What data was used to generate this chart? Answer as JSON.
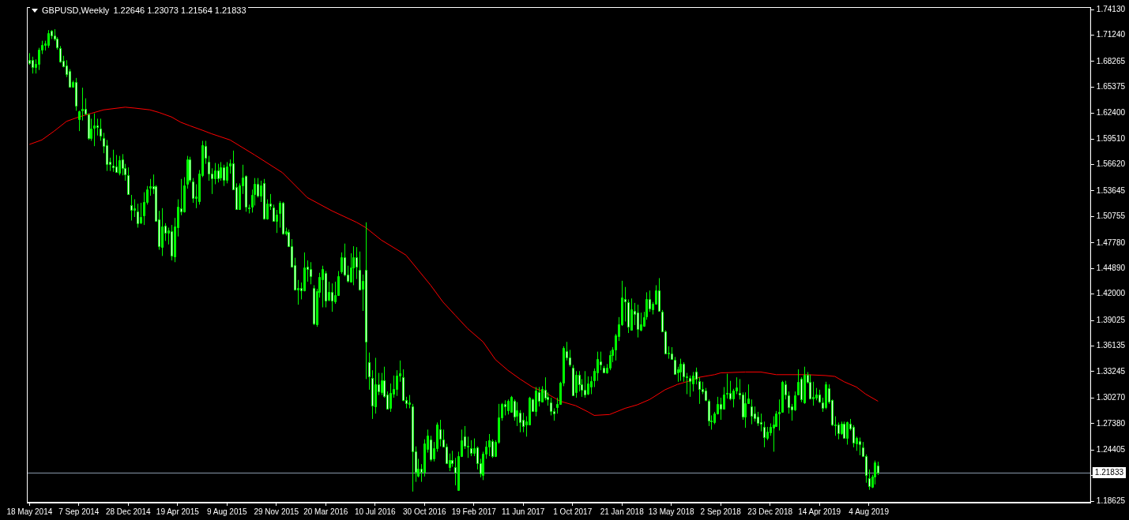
{
  "chart_data": {
    "type": "candlestick",
    "title": "GBPUSD,Weekly",
    "subtitle": "1.22646 1.23073 1.21564 1.21833",
    "color": "#00ff00",
    "colors": [
      "#ffffff",
      "#ffffff",
      "#00ff00",
      "#00ff00",
      "#00ff00",
      "#00ff00",
      "#00ff00",
      "#ffffff",
      "#ffffff",
      "#ffffff",
      "#ffffff",
      "#ffffff",
      "#ffffff",
      "#ffffff",
      "#00ff00",
      "#ffffff",
      "#00ff00",
      "#00ff00",
      "#ffffff",
      "#ffffff",
      "#00ff00",
      "#00ff00",
      "#ffffff",
      "#ffffff",
      "#ffffff",
      "#ffffff",
      "#ffffff",
      "#ffffff",
      "#ffffff",
      "#00ff00",
      "#ffffff",
      "#ffffff",
      "#ffffff",
      "#ffffff",
      "#00ff00",
      "#ffffff",
      "#00ff00",
      "#00ff00",
      "#00ff00",
      "#00ff00",
      "#ffffff",
      "#ffffff",
      "#ffffff",
      "#00ff00",
      "#ffffff",
      "#00ff00",
      "#ffffff",
      "#00ff00",
      "#00ff00",
      "#ffffff",
      "#00ff00",
      "#00ff00",
      "#ffffff",
      "#ffffff",
      "#00ff00",
      "#00ff00",
      "#00ff00",
      "#ffffff",
      "#ffffff",
      "#ffffff",
      "#00ff00",
      "#ffffff",
      "#00ff00",
      "#ffffff",
      "#00ff00",
      "#00ff00",
      "#ffffff",
      "#ffffff",
      "#00ff00",
      "#00ff00",
      "#ffffff",
      "#ffffff",
      "#00ff00",
      "#00ff00",
      "#ffffff",
      "#00ff00",
      "#ffffff",
      "#00ff00",
      "#ffffff",
      "#ffffff",
      "#00ff00",
      "#00ff00",
      "#ffffff",
      "#00ff00",
      "#ffffff",
      "#ffffff",
      "#ffffff",
      "#00ff00",
      "#ffffff",
      "#00ff00",
      "#ffffff",
      "#ffffff",
      "#ffffff",
      "#00ff00",
      "#00ff00",
      "#00ff00",
      "#ffffff",
      "#00ff00",
      "#ffffff",
      "#00ff00",
      "#00ff00",
      "#00ff00",
      "#ffffff",
      "#ffffff",
      "#00ff00",
      "#00ff00",
      "#ffffff",
      "#ffffff",
      "#00ff00",
      "#ffffff",
      "#ffffff",
      "#ffffff",
      "#00ff00",
      "#ffffff",
      "#00ff00",
      "#ffffff",
      "#ffffff",
      "#00ff00",
      "#00ff00",
      "#00ff00",
      "#00ff00",
      "#ffffff",
      "#ffffff",
      "#00ff00",
      "#ffffff",
      "#ffffff",
      "#00ff00",
      "#ffffff",
      "#00ff00",
      "#00ff00",
      "#ffffff",
      "#00ff00",
      "#00ff00",
      "#ffffff",
      "#ffffff",
      "#ffffff",
      "#00ff00",
      "#ffffff",
      "#ffffff",
      "#00ff00",
      "#00ff00",
      "#ffffff",
      "#00ff00",
      "#ffffff",
      "#00ff00",
      "#ffffff",
      "#ffffff",
      "#00ff00",
      "#00ff00",
      "#00ff00",
      "#ffffff",
      "#00ff00",
      "#00ff00",
      "#00ff00",
      "#ffffff",
      "#00ff00",
      "#00ff00",
      "#ffffff",
      "#00ff00",
      "#ffffff",
      "#ffffff",
      "#00ff00",
      "#00ff00",
      "#ffffff",
      "#00ff00",
      "#ffffff",
      "#00ff00",
      "#ffffff",
      "#ffffff",
      "#ffffff",
      "#ffffff",
      "#00ff00",
      "#00ff00",
      "#00ff00",
      "#ffffff",
      "#ffffff",
      "#ffffff",
      "#00ff00",
      "#ffffff",
      "#ffffff",
      "#ffffff",
      "#00ff00",
      "#00ff00",
      "#00ff00",
      "#00ff00",
      "#ffffff",
      "#ffffff",
      "#00ff00",
      "#00ff00",
      "#00ff00",
      "#00ff00",
      "#00ff00",
      "#00ff00",
      "#ffffff",
      "#ffffff",
      "#00ff00",
      "#ffffff",
      "#ffffff",
      "#00ff00",
      "#00ff00",
      "#00ff00",
      "#ffffff",
      "#00ff00",
      "#00ff00",
      "#ffffff",
      "#ffffff",
      "#ffffff",
      "#00ff00",
      "#ffffff",
      "#ffffff",
      "#00ff00",
      "#00ff00",
      "#ffffff",
      "#ffffff",
      "#ffffff",
      "#00ff00",
      "#ffffff",
      "#ffffff",
      "#ffffff",
      "#ffffff",
      "#ffffff",
      "#ffffff",
      "#00ff00",
      "#00ff00",
      "#ffffff",
      "#00ff00",
      "#00ff00",
      "#ffffff",
      "#00ff00",
      "#00ff00",
      "#ffffff",
      "#ffffff",
      "#00ff00",
      "#00ff00",
      "#ffffff",
      "#ffffff",
      "#ffffff",
      "#ffffff",
      "#ffffff",
      "#00ff00",
      "#00ff00",
      "#00ff00",
      "#00ff00",
      "#00ff00",
      "#00ff00",
      "#ffffff",
      "#ffffff",
      "#ffffff",
      "#00ff00",
      "#00ff00",
      "#ffffff",
      "#00ff00",
      "#ffffff",
      "#ffffff",
      "#00ff00",
      "#00ff00",
      "#ffffff",
      "#ffffff",
      "#00ff00",
      "#ffffff",
      "#ffffff",
      "#00ff00",
      "#ffffff",
      "#00ff00",
      "#ffffff",
      "#00ff00",
      "#ffffff",
      "#ffffff",
      "#00ff00",
      "#ffffff",
      "#ffffff",
      "#ffffff",
      "#ffffff",
      "#00ff00",
      "#00ff00",
      "#ffffff"
    ],
    "x": [
      "2014-05-18",
      "2014-05-25",
      "2014-06-01",
      "2014-06-08",
      "2014-06-15",
      "2014-06-22",
      "2014-06-29",
      "2014-07-06",
      "2014-07-13",
      "2014-07-20",
      "2014-07-27",
      "2014-08-03",
      "2014-08-10",
      "2014-08-17",
      "2014-08-24",
      "2014-08-31",
      "2014-09-07",
      "2014-09-14",
      "2014-09-21",
      "2014-09-28",
      "2014-10-05",
      "2014-10-12",
      "2014-10-19",
      "2014-10-26",
      "2014-11-02",
      "2014-11-09",
      "2014-11-16",
      "2014-11-23",
      "2014-11-30",
      "2014-12-07",
      "2014-12-14",
      "2014-12-21",
      "2014-12-28",
      "2015-01-04",
      "2015-01-11",
      "2015-01-18",
      "2015-01-25",
      "2015-02-01",
      "2015-02-08",
      "2015-02-15",
      "2015-02-22",
      "2015-03-01",
      "2015-03-08",
      "2015-03-15",
      "2015-03-22",
      "2015-03-29",
      "2015-04-05",
      "2015-04-12",
      "2015-04-19",
      "2015-04-26",
      "2015-05-03",
      "2015-05-10",
      "2015-05-17",
      "2015-05-24",
      "2015-05-31",
      "2015-06-07",
      "2015-06-14",
      "2015-06-21",
      "2015-06-28",
      "2015-07-05",
      "2015-07-12",
      "2015-07-19",
      "2015-07-26",
      "2015-08-02",
      "2015-08-09",
      "2015-08-16",
      "2015-08-23",
      "2015-08-30",
      "2015-09-06",
      "2015-09-13",
      "2015-09-20",
      "2015-09-27",
      "2015-10-04",
      "2015-10-11",
      "2015-10-18",
      "2015-10-25",
      "2015-11-01",
      "2015-11-08",
      "2015-11-15",
      "2015-11-22",
      "2015-11-29",
      "2015-12-06",
      "2015-12-13",
      "2015-12-20",
      "2015-12-27",
      "2016-01-03",
      "2016-01-10",
      "2016-01-17",
      "2016-01-24",
      "2016-01-31",
      "2016-02-07",
      "2016-02-14",
      "2016-02-21",
      "2016-02-28",
      "2016-03-06",
      "2016-03-13",
      "2016-03-20",
      "2016-03-27",
      "2016-04-03",
      "2016-04-10",
      "2016-04-17",
      "2016-04-24",
      "2016-05-01",
      "2016-05-08",
      "2016-05-15",
      "2016-05-22",
      "2016-05-29",
      "2016-06-05",
      "2016-06-12",
      "2016-06-19",
      "2016-06-26",
      "2016-07-03",
      "2016-07-10",
      "2016-07-17",
      "2016-07-24",
      "2016-07-31",
      "2016-08-07",
      "2016-08-14",
      "2016-08-21",
      "2016-08-28",
      "2016-09-04",
      "2016-09-11",
      "2016-09-18",
      "2016-09-25",
      "2016-10-02",
      "2016-10-09",
      "2016-10-16",
      "2016-10-23",
      "2016-10-30",
      "2016-11-06",
      "2016-11-13",
      "2016-11-20",
      "2016-11-27",
      "2016-12-04",
      "2016-12-11",
      "2016-12-18",
      "2016-12-25",
      "2017-01-01",
      "2017-01-08",
      "2017-01-15",
      "2017-01-22",
      "2017-01-29",
      "2017-02-05",
      "2017-02-12",
      "2017-02-19",
      "2017-02-26",
      "2017-03-05",
      "2017-03-12",
      "2017-03-19",
      "2017-03-26",
      "2017-04-02",
      "2017-04-09",
      "2017-04-16",
      "2017-04-23",
      "2017-04-30",
      "2017-05-07",
      "2017-05-14",
      "2017-05-21",
      "2017-05-28",
      "2017-06-04",
      "2017-06-11",
      "2017-06-18",
      "2017-06-25",
      "2017-07-02",
      "2017-07-09",
      "2017-07-16",
      "2017-07-23",
      "2017-07-30",
      "2017-08-06",
      "2017-08-13",
      "2017-08-20",
      "2017-08-27",
      "2017-09-03",
      "2017-09-10",
      "2017-09-17",
      "2017-09-24",
      "2017-10-01",
      "2017-10-08",
      "2017-10-15",
      "2017-10-22",
      "2017-10-29",
      "2017-11-05",
      "2017-11-12",
      "2017-11-19",
      "2017-11-26",
      "2017-12-03",
      "2017-12-10",
      "2017-12-17",
      "2017-12-24",
      "2017-12-31",
      "2018-01-07",
      "2018-01-14",
      "2018-01-21",
      "2018-01-28",
      "2018-02-04",
      "2018-02-11",
      "2018-02-18",
      "2018-02-25",
      "2018-03-04",
      "2018-03-11",
      "2018-03-18",
      "2018-03-25",
      "2018-04-01",
      "2018-04-08",
      "2018-04-15",
      "2018-04-22",
      "2018-04-29",
      "2018-05-06",
      "2018-05-13",
      "2018-05-20",
      "2018-05-27",
      "2018-06-03",
      "2018-06-10",
      "2018-06-17",
      "2018-06-24",
      "2018-07-01",
      "2018-07-08",
      "2018-07-15",
      "2018-07-22",
      "2018-07-29",
      "2018-08-05",
      "2018-08-12",
      "2018-08-19",
      "2018-08-26",
      "2018-09-02",
      "2018-09-09",
      "2018-09-16",
      "2018-09-23",
      "2018-09-30",
      "2018-10-07",
      "2018-10-14",
      "2018-10-21",
      "2018-10-28",
      "2018-11-04",
      "2018-11-11",
      "2018-11-18",
      "2018-11-25",
      "2018-12-02",
      "2018-12-09",
      "2018-12-16",
      "2018-12-23",
      "2018-12-30",
      "2019-01-06",
      "2019-01-13",
      "2019-01-20",
      "2019-01-27",
      "2019-02-03",
      "2019-02-10",
      "2019-02-17",
      "2019-02-24",
      "2019-03-03",
      "2019-03-10",
      "2019-03-17",
      "2019-03-24",
      "2019-03-31",
      "2019-04-07",
      "2019-04-14",
      "2019-04-21",
      "2019-04-28",
      "2019-05-05",
      "2019-05-12",
      "2019-05-19",
      "2019-05-26",
      "2019-06-02",
      "2019-06-09",
      "2019-06-16",
      "2019-06-23",
      "2019-06-30",
      "2019-07-07",
      "2019-07-14",
      "2019-07-21",
      "2019-07-28",
      "2019-08-04",
      "2019-08-11",
      "2019-08-18",
      "2019-08-25"
    ],
    "ohlc": [
      [
        1.684,
        1.692,
        1.679,
        1.68
      ],
      [
        1.684,
        1.688,
        1.669,
        1.676
      ],
      [
        1.676,
        1.685,
        1.669,
        1.68
      ],
      [
        1.68,
        1.698,
        1.673,
        1.696
      ],
      [
        1.696,
        1.706,
        1.691,
        1.701
      ],
      [
        1.701,
        1.706,
        1.695,
        1.703
      ],
      [
        1.702,
        1.718,
        1.698,
        1.715
      ],
      [
        1.717,
        1.718,
        1.708,
        1.712
      ],
      [
        1.712,
        1.719,
        1.706,
        1.708
      ],
      [
        1.708,
        1.71,
        1.696,
        1.698
      ],
      [
        1.698,
        1.7,
        1.681,
        1.683
      ],
      [
        1.683,
        1.689,
        1.676,
        1.677
      ],
      [
        1.678,
        1.684,
        1.665,
        1.668
      ],
      [
        1.672,
        1.674,
        1.653,
        1.654
      ],
      [
        1.654,
        1.661,
        1.653,
        1.659
      ],
      [
        1.659,
        1.664,
        1.627,
        1.632
      ],
      [
        1.617,
        1.627,
        1.604,
        1.626
      ],
      [
        1.627,
        1.653,
        1.616,
        1.629
      ],
      [
        1.629,
        1.641,
        1.622,
        1.624
      ],
      [
        1.623,
        1.624,
        1.594,
        1.596
      ],
      [
        1.596,
        1.618,
        1.593,
        1.607
      ],
      [
        1.607,
        1.624,
        1.587,
        1.61
      ],
      [
        1.61,
        1.618,
        1.599,
        1.608
      ],
      [
        1.607,
        1.618,
        1.593,
        1.599
      ],
      [
        1.596,
        1.602,
        1.579,
        1.587
      ],
      [
        1.588,
        1.594,
        1.559,
        1.567
      ],
      [
        1.569,
        1.574,
        1.559,
        1.566
      ],
      [
        1.565,
        1.583,
        1.558,
        1.563
      ],
      [
        1.564,
        1.577,
        1.557,
        1.558
      ],
      [
        1.557,
        1.576,
        1.554,
        1.571
      ],
      [
        1.572,
        1.578,
        1.554,
        1.562
      ],
      [
        1.562,
        1.567,
        1.548,
        1.555
      ],
      [
        1.554,
        1.563,
        1.532,
        1.533
      ],
      [
        1.52,
        1.532,
        1.503,
        1.515
      ],
      [
        1.515,
        1.527,
        1.507,
        1.517
      ],
      [
        1.513,
        1.522,
        1.495,
        1.5
      ],
      [
        1.501,
        1.523,
        1.499,
        1.507
      ],
      [
        1.509,
        1.535,
        1.498,
        1.524
      ],
      [
        1.524,
        1.542,
        1.521,
        1.538
      ],
      [
        1.54,
        1.55,
        1.531,
        1.542
      ],
      [
        1.542,
        1.555,
        1.533,
        1.539
      ],
      [
        1.542,
        1.543,
        1.502,
        1.503
      ],
      [
        1.504,
        1.514,
        1.47,
        1.474
      ],
      [
        1.473,
        1.517,
        1.463,
        1.496
      ],
      [
        1.497,
        1.5,
        1.48,
        1.489
      ],
      [
        1.489,
        1.495,
        1.476,
        1.492
      ],
      [
        1.491,
        1.498,
        1.458,
        1.463
      ],
      [
        1.462,
        1.506,
        1.456,
        1.496
      ],
      [
        1.496,
        1.527,
        1.485,
        1.519
      ],
      [
        1.517,
        1.55,
        1.509,
        1.513
      ],
      [
        1.514,
        1.552,
        1.512,
        1.543
      ],
      [
        1.544,
        1.576,
        1.539,
        1.572
      ],
      [
        1.572,
        1.575,
        1.546,
        1.549
      ],
      [
        1.547,
        1.551,
        1.523,
        1.528
      ],
      [
        1.528,
        1.544,
        1.517,
        1.53
      ],
      [
        1.525,
        1.56,
        1.521,
        1.556
      ],
      [
        1.554,
        1.593,
        1.552,
        1.588
      ],
      [
        1.587,
        1.593,
        1.567,
        1.574
      ],
      [
        1.569,
        1.576,
        1.548,
        1.556
      ],
      [
        1.556,
        1.562,
        1.533,
        1.551
      ],
      [
        1.551,
        1.568,
        1.544,
        1.56
      ],
      [
        1.56,
        1.567,
        1.546,
        1.551
      ],
      [
        1.551,
        1.569,
        1.548,
        1.563
      ],
      [
        1.563,
        1.566,
        1.542,
        1.549
      ],
      [
        1.549,
        1.569,
        1.545,
        1.564
      ],
      [
        1.565,
        1.572,
        1.556,
        1.568
      ],
      [
        1.568,
        1.582,
        1.538,
        1.539
      ],
      [
        1.541,
        1.545,
        1.515,
        1.516
      ],
      [
        1.516,
        1.545,
        1.515,
        1.543
      ],
      [
        1.543,
        1.566,
        1.533,
        1.552
      ],
      [
        1.553,
        1.554,
        1.513,
        1.518
      ],
      [
        1.518,
        1.521,
        1.511,
        1.517
      ],
      [
        1.519,
        1.538,
        1.512,
        1.532
      ],
      [
        1.532,
        1.551,
        1.52,
        1.544
      ],
      [
        1.544,
        1.551,
        1.529,
        1.531
      ],
      [
        1.531,
        1.548,
        1.524,
        1.543
      ],
      [
        1.545,
        1.55,
        1.504,
        1.505
      ],
      [
        1.505,
        1.527,
        1.504,
        1.522
      ],
      [
        1.522,
        1.533,
        1.515,
        1.519
      ],
      [
        1.518,
        1.521,
        1.502,
        1.503
      ],
      [
        1.503,
        1.515,
        1.489,
        1.51
      ],
      [
        1.511,
        1.525,
        1.495,
        1.523
      ],
      [
        1.523,
        1.524,
        1.487,
        1.488
      ],
      [
        1.488,
        1.495,
        1.486,
        1.491
      ],
      [
        1.49,
        1.493,
        1.473,
        1.474
      ],
      [
        1.474,
        1.482,
        1.45,
        1.451
      ],
      [
        1.453,
        1.461,
        1.424,
        1.425
      ],
      [
        1.425,
        1.436,
        1.408,
        1.427
      ],
      [
        1.427,
        1.433,
        1.414,
        1.424
      ],
      [
        1.424,
        1.467,
        1.423,
        1.45
      ],
      [
        1.451,
        1.458,
        1.434,
        1.448
      ],
      [
        1.448,
        1.456,
        1.431,
        1.44
      ],
      [
        1.427,
        1.43,
        1.385,
        1.387
      ],
      [
        1.386,
        1.426,
        1.383,
        1.423
      ],
      [
        1.422,
        1.444,
        1.416,
        1.439
      ],
      [
        1.436,
        1.452,
        1.405,
        1.448
      ],
      [
        1.444,
        1.446,
        1.405,
        1.413
      ],
      [
        1.413,
        1.434,
        1.412,
        1.422
      ],
      [
        1.422,
        1.432,
        1.4,
        1.412
      ],
      [
        1.412,
        1.434,
        1.409,
        1.419
      ],
      [
        1.419,
        1.446,
        1.418,
        1.44
      ],
      [
        1.446,
        1.467,
        1.443,
        1.462
      ],
      [
        1.462,
        1.477,
        1.44,
        1.442
      ],
      [
        1.442,
        1.452,
        1.433,
        1.435
      ],
      [
        1.434,
        1.466,
        1.433,
        1.45
      ],
      [
        1.45,
        1.474,
        1.43,
        1.462
      ],
      [
        1.462,
        1.473,
        1.437,
        1.451
      ],
      [
        1.447,
        1.468,
        1.424,
        1.425
      ],
      [
        1.426,
        1.442,
        1.401,
        1.435
      ],
      [
        1.447,
        1.501,
        1.324,
        1.366
      ],
      [
        1.343,
        1.354,
        1.312,
        1.327
      ],
      [
        1.325,
        1.334,
        1.279,
        1.294
      ],
      [
        1.293,
        1.348,
        1.285,
        1.318
      ],
      [
        1.318,
        1.331,
        1.306,
        1.31
      ],
      [
        1.31,
        1.331,
        1.306,
        1.323
      ],
      [
        1.323,
        1.338,
        1.303,
        1.305
      ],
      [
        1.307,
        1.31,
        1.29,
        1.291
      ],
      [
        1.291,
        1.319,
        1.287,
        1.308
      ],
      [
        1.308,
        1.328,
        1.303,
        1.313
      ],
      [
        1.313,
        1.334,
        1.305,
        1.328
      ],
      [
        1.328,
        1.345,
        1.321,
        1.331
      ],
      [
        1.326,
        1.335,
        1.299,
        1.3
      ],
      [
        1.3,
        1.304,
        1.291,
        1.296
      ],
      [
        1.296,
        1.306,
        1.291,
        1.298
      ],
      [
        1.293,
        1.296,
        1.197,
        1.242
      ],
      [
        1.242,
        1.248,
        1.208,
        1.219
      ],
      [
        1.215,
        1.234,
        1.213,
        1.223
      ],
      [
        1.223,
        1.228,
        1.208,
        1.219
      ],
      [
        1.219,
        1.256,
        1.214,
        1.251
      ],
      [
        1.245,
        1.267,
        1.241,
        1.26
      ],
      [
        1.256,
        1.26,
        1.231,
        1.234
      ],
      [
        1.234,
        1.253,
        1.231,
        1.246
      ],
      [
        1.246,
        1.275,
        1.242,
        1.273
      ],
      [
        1.267,
        1.278,
        1.248,
        1.256
      ],
      [
        1.256,
        1.267,
        1.247,
        1.248
      ],
      [
        1.248,
        1.251,
        1.228,
        1.229
      ],
      [
        1.225,
        1.24,
        1.22,
        1.233
      ],
      [
        1.233,
        1.243,
        1.225,
        1.229
      ],
      [
        1.225,
        1.235,
        1.204,
        1.219
      ],
      [
        1.199,
        1.242,
        1.198,
        1.237
      ],
      [
        1.237,
        1.267,
        1.236,
        1.255
      ],
      [
        1.259,
        1.271,
        1.245,
        1.248
      ],
      [
        1.248,
        1.259,
        1.235,
        1.249
      ],
      [
        1.246,
        1.255,
        1.237,
        1.241
      ],
      [
        1.241,
        1.257,
        1.237,
        1.246
      ],
      [
        1.247,
        1.248,
        1.222,
        1.229
      ],
      [
        1.229,
        1.234,
        1.213,
        1.217
      ],
      [
        1.216,
        1.242,
        1.21,
        1.24
      ],
      [
        1.24,
        1.254,
        1.234,
        1.248
      ],
      [
        1.248,
        1.262,
        1.237,
        1.255
      ],
      [
        1.254,
        1.256,
        1.235,
        1.237
      ],
      [
        1.237,
        1.255,
        1.236,
        1.253
      ],
      [
        1.253,
        1.296,
        1.251,
        1.281
      ],
      [
        1.281,
        1.297,
        1.277,
        1.296
      ],
      [
        1.296,
        1.3,
        1.283,
        1.293
      ],
      [
        1.288,
        1.301,
        1.284,
        1.299
      ],
      [
        1.287,
        1.305,
        1.286,
        1.304
      ],
      [
        1.299,
        1.301,
        1.277,
        1.281
      ],
      [
        1.283,
        1.298,
        1.271,
        1.289
      ],
      [
        1.286,
        1.289,
        1.264,
        1.275
      ],
      [
        1.278,
        1.286,
        1.264,
        1.271
      ],
      [
        1.272,
        1.282,
        1.259,
        1.276
      ],
      [
        1.273,
        1.304,
        1.272,
        1.303
      ],
      [
        1.301,
        1.302,
        1.287,
        1.288
      ],
      [
        1.288,
        1.315,
        1.282,
        1.311
      ],
      [
        1.309,
        1.315,
        1.293,
        1.299
      ],
      [
        1.299,
        1.316,
        1.298,
        1.313
      ],
      [
        1.312,
        1.326,
        1.3,
        1.303
      ],
      [
        1.304,
        1.309,
        1.294,
        1.301
      ],
      [
        1.298,
        1.303,
        1.283,
        1.288
      ],
      [
        1.288,
        1.291,
        1.277,
        1.285
      ],
      [
        1.292,
        1.303,
        1.285,
        1.296
      ],
      [
        1.296,
        1.321,
        1.295,
        1.32
      ],
      [
        1.32,
        1.361,
        1.316,
        1.359
      ],
      [
        1.356,
        1.366,
        1.345,
        1.349
      ],
      [
        1.348,
        1.357,
        1.338,
        1.34
      ],
      [
        1.337,
        1.34,
        1.305,
        1.306
      ],
      [
        1.309,
        1.333,
        1.303,
        1.329
      ],
      [
        1.329,
        1.333,
        1.31,
        1.318
      ],
      [
        1.318,
        1.324,
        1.304,
        1.312
      ],
      [
        1.312,
        1.333,
        1.303,
        1.307
      ],
      [
        1.307,
        1.327,
        1.306,
        1.319
      ],
      [
        1.316,
        1.327,
        1.307,
        1.322
      ],
      [
        1.322,
        1.336,
        1.315,
        1.333
      ],
      [
        1.332,
        1.355,
        1.322,
        1.347
      ],
      [
        1.344,
        1.355,
        1.334,
        1.34
      ],
      [
        1.337,
        1.339,
        1.331,
        1.332
      ],
      [
        1.332,
        1.341,
        1.33,
        1.337
      ],
      [
        1.337,
        1.356,
        1.334,
        1.351
      ],
      [
        1.351,
        1.36,
        1.343,
        1.357
      ],
      [
        1.357,
        1.375,
        1.345,
        1.373
      ],
      [
        1.373,
        1.394,
        1.367,
        1.386
      ],
      [
        1.386,
        1.435,
        1.384,
        1.416
      ],
      [
        1.414,
        1.428,
        1.389,
        1.411
      ],
      [
        1.411,
        1.414,
        1.376,
        1.383
      ],
      [
        1.38,
        1.415,
        1.379,
        1.403
      ],
      [
        1.401,
        1.41,
        1.385,
        1.397
      ],
      [
        1.399,
        1.408,
        1.371,
        1.38
      ],
      [
        1.38,
        1.399,
        1.378,
        1.386
      ],
      [
        1.384,
        1.4,
        1.383,
        1.394
      ],
      [
        1.394,
        1.422,
        1.391,
        1.414
      ],
      [
        1.414,
        1.424,
        1.4,
        1.403
      ],
      [
        1.403,
        1.411,
        1.397,
        1.409
      ],
      [
        1.409,
        1.43,
        1.408,
        1.424
      ],
      [
        1.424,
        1.438,
        1.4,
        1.401
      ],
      [
        1.4,
        1.402,
        1.377,
        1.378
      ],
      [
        1.378,
        1.379,
        1.352,
        1.353
      ],
      [
        1.353,
        1.361,
        1.347,
        1.354
      ],
      [
        1.353,
        1.36,
        1.346,
        1.347
      ],
      [
        1.346,
        1.349,
        1.329,
        1.33
      ],
      [
        1.331,
        1.338,
        1.321,
        1.335
      ],
      [
        1.332,
        1.347,
        1.322,
        1.341
      ],
      [
        1.341,
        1.343,
        1.321,
        1.327
      ],
      [
        1.327,
        1.331,
        1.307,
        1.326
      ],
      [
        1.325,
        1.328,
        1.304,
        1.321
      ],
      [
        1.319,
        1.332,
        1.31,
        1.328
      ],
      [
        1.332,
        1.337,
        1.318,
        1.324
      ],
      [
        1.322,
        1.326,
        1.296,
        1.313
      ],
      [
        1.313,
        1.321,
        1.307,
        1.31
      ],
      [
        1.311,
        1.314,
        1.299,
        1.3
      ],
      [
        1.299,
        1.301,
        1.271,
        1.277
      ],
      [
        1.277,
        1.283,
        1.267,
        1.276
      ],
      [
        1.275,
        1.287,
        1.273,
        1.285
      ],
      [
        1.285,
        1.304,
        1.284,
        1.296
      ],
      [
        1.296,
        1.303,
        1.278,
        1.291
      ],
      [
        1.291,
        1.315,
        1.29,
        1.307
      ],
      [
        1.307,
        1.33,
        1.302,
        1.308
      ],
      [
        1.308,
        1.322,
        1.3,
        1.302
      ],
      [
        1.302,
        1.313,
        1.292,
        1.311
      ],
      [
        1.311,
        1.326,
        1.307,
        1.315
      ],
      [
        1.308,
        1.324,
        1.301,
        1.306
      ],
      [
        1.307,
        1.309,
        1.278,
        1.282
      ],
      [
        1.282,
        1.309,
        1.269,
        1.297
      ],
      [
        1.297,
        1.318,
        1.296,
        1.302
      ],
      [
        1.293,
        1.301,
        1.273,
        1.282
      ],
      [
        1.285,
        1.293,
        1.276,
        1.28
      ],
      [
        1.282,
        1.287,
        1.271,
        1.275
      ],
      [
        1.275,
        1.285,
        1.265,
        1.273
      ],
      [
        1.27,
        1.276,
        1.247,
        1.258
      ],
      [
        1.258,
        1.27,
        1.255,
        1.265
      ],
      [
        1.264,
        1.274,
        1.26,
        1.27
      ],
      [
        1.269,
        1.282,
        1.242,
        1.273
      ],
      [
        1.271,
        1.288,
        1.27,
        1.285
      ],
      [
        1.285,
        1.301,
        1.266,
        1.287
      ],
      [
        1.287,
        1.322,
        1.287,
        1.321
      ],
      [
        1.318,
        1.322,
        1.301,
        1.306
      ],
      [
        1.306,
        1.31,
        1.285,
        1.293
      ],
      [
        1.293,
        1.296,
        1.277,
        1.289
      ],
      [
        1.29,
        1.31,
        1.288,
        1.306
      ],
      [
        1.307,
        1.335,
        1.306,
        1.321
      ],
      [
        1.324,
        1.326,
        1.298,
        1.301
      ],
      [
        1.298,
        1.338,
        1.296,
        1.329
      ],
      [
        1.329,
        1.332,
        1.319,
        1.321
      ],
      [
        1.321,
        1.329,
        1.301,
        1.302
      ],
      [
        1.302,
        1.321,
        1.294,
        1.304
      ],
      [
        1.303,
        1.314,
        1.3,
        1.307
      ],
      [
        1.307,
        1.312,
        1.297,
        1.299
      ],
      [
        1.298,
        1.303,
        1.287,
        1.292
      ],
      [
        1.292,
        1.321,
        1.29,
        1.318
      ],
      [
        1.314,
        1.318,
        1.296,
        1.299
      ],
      [
        1.3,
        1.301,
        1.271,
        1.272
      ],
      [
        1.272,
        1.282,
        1.26,
        1.273
      ],
      [
        1.273,
        1.275,
        1.256,
        1.263
      ],
      [
        1.263,
        1.276,
        1.261,
        1.274
      ],
      [
        1.274,
        1.276,
        1.257,
        1.258
      ],
      [
        1.257,
        1.276,
        1.25,
        1.275
      ],
      [
        1.274,
        1.279,
        1.266,
        1.269
      ],
      [
        1.27,
        1.272,
        1.247,
        1.252
      ],
      [
        1.252,
        1.259,
        1.243,
        1.258
      ],
      [
        1.254,
        1.258,
        1.238,
        1.25
      ],
      [
        1.247,
        1.253,
        1.236,
        1.237
      ],
      [
        1.237,
        1.239,
        1.207,
        1.216
      ],
      [
        1.212,
        1.222,
        1.199,
        1.203
      ],
      [
        1.202,
        1.216,
        1.201,
        1.214
      ],
      [
        1.214,
        1.232,
        1.205,
        1.23
      ],
      [
        1.22646,
        1.23073,
        1.21564,
        1.21833
      ]
    ],
    "series": [
      {
        "type": "line",
        "color": "#ff0000",
        "marker": "none",
        "line_style": "solid",
        "x": [
          "2014-05-18",
          "2014-06-15",
          "2014-07-13",
          "2014-08-10",
          "2014-09-07",
          "2014-10-05",
          "2014-11-02",
          "2014-12-21",
          "2015-01-11",
          "2015-02-15",
          "2015-03-08",
          "2015-04-05",
          "2015-04-26",
          "2015-05-17",
          "2015-06-14",
          "2015-07-05",
          "2015-08-16",
          "2015-10-11",
          "2015-12-13",
          "2016-02-07",
          "2016-04-03",
          "2016-05-29",
          "2016-06-19",
          "2016-07-24",
          "2016-09-18",
          "2016-10-16",
          "2016-11-13",
          "2016-12-11",
          "2017-01-08",
          "2017-02-05",
          "2017-03-12",
          "2017-04-09",
          "2017-05-07",
          "2017-06-04",
          "2017-07-02",
          "2017-07-30",
          "2017-09-03",
          "2017-10-08",
          "2017-11-05",
          "2017-11-19",
          "2017-12-24",
          "2018-01-28",
          "2018-02-25",
          "2018-03-25",
          "2018-04-29",
          "2018-05-27",
          "2018-06-24",
          "2018-07-15",
          "2018-08-19",
          "2018-09-02",
          "2018-10-28",
          "2018-12-02",
          "2019-01-06",
          "2019-02-10",
          "2019-03-17",
          "2019-04-28",
          "2019-05-19",
          "2019-06-09",
          "2019-07-07",
          "2019-07-28",
          "2019-08-25"
        ],
        "values": [
          1.589,
          1.594,
          1.604,
          1.615,
          1.62,
          1.624,
          1.628,
          1.631,
          1.63,
          1.628,
          1.625,
          1.62,
          1.614,
          1.61,
          1.605,
          1.601,
          1.594,
          1.577,
          1.557,
          1.529,
          1.514,
          1.501,
          1.495,
          1.481,
          1.464,
          1.447,
          1.43,
          1.411,
          1.396,
          1.381,
          1.366,
          1.346,
          1.334,
          1.324,
          1.315,
          1.309,
          1.299,
          1.294,
          1.287,
          1.283,
          1.284,
          1.291,
          1.295,
          1.301,
          1.312,
          1.318,
          1.322,
          1.326,
          1.329,
          1.331,
          1.332,
          1.332,
          1.329,
          1.329,
          1.329,
          1.328,
          1.327,
          1.321,
          1.315,
          1.307,
          1.299
        ]
      }
    ],
    "ref_lines": [
      {
        "axis": "y",
        "value": 1.21833,
        "label": "1.21833",
        "color": "#8899aa"
      }
    ],
    "xlim": [
      "2014-05-12",
      "2020-12-20"
    ],
    "xticks": [
      {
        "value": "2014-05-18",
        "label": "18 May 2014"
      },
      {
        "value": "2014-09-07",
        "label": "7 Sep 2014"
      },
      {
        "value": "2014-12-28",
        "label": "28 Dec 2014"
      },
      {
        "value": "2015-04-19",
        "label": "19 Apr 2015"
      },
      {
        "value": "2015-08-09",
        "label": "9 Aug 2015"
      },
      {
        "value": "2015-11-29",
        "label": "29 Nov 2015"
      },
      {
        "value": "2016-03-20",
        "label": "20 Mar 2016"
      },
      {
        "value": "2016-07-10",
        "label": "10 Jul 2016"
      },
      {
        "value": "2016-10-30",
        "label": "30 Oct 2016"
      },
      {
        "value": "2017-02-19",
        "label": "19 Feb 2017"
      },
      {
        "value": "2017-06-11",
        "label": "11 Jun 2017"
      },
      {
        "value": "2017-10-01",
        "label": "1 Oct 2017"
      },
      {
        "value": "2018-01-21",
        "label": "21 Jan 2018"
      },
      {
        "value": "2018-05-13",
        "label": "13 May 2018"
      },
      {
        "value": "2018-09-02",
        "label": "2 Sep 2018"
      },
      {
        "value": "2018-12-23",
        "label": "23 Dec 2018"
      },
      {
        "value": "2019-04-14",
        "label": "14 Apr 2019"
      },
      {
        "value": "2019-08-04",
        "label": "4 Aug 2019"
      }
    ],
    "ylim": [
      1.1845,
      1.744
    ],
    "yticks": [
      {
        "value": 1.18625,
        "label": "1.18625"
      },
      {
        "value": 1.21515,
        "label": null
      },
      {
        "value": 1.24405,
        "label": "1.24405"
      },
      {
        "value": 1.2738,
        "label": "1.27380"
      },
      {
        "value": 1.3027,
        "label": "1.30270"
      },
      {
        "value": 1.33245,
        "label": "1.33245"
      },
      {
        "value": 1.36135,
        "label": "1.36135"
      },
      {
        "value": 1.39025,
        "label": "1.39025"
      },
      {
        "value": 1.42,
        "label": "1.42000"
      },
      {
        "value": 1.4489,
        "label": "1.44890"
      },
      {
        "value": 1.4778,
        "label": "1.47780"
      },
      {
        "value": 1.50755,
        "label": "1.50755"
      },
      {
        "value": 1.53645,
        "label": "1.53645"
      },
      {
        "value": 1.5662,
        "label": "1.56620"
      },
      {
        "value": 1.5951,
        "label": "1.59510"
      },
      {
        "value": 1.624,
        "label": "1.62400"
      },
      {
        "value": 1.65375,
        "label": "1.65375"
      },
      {
        "value": 1.68265,
        "label": "1.68265"
      },
      {
        "value": 1.7124,
        "label": "1.71240"
      },
      {
        "value": 1.7413,
        "label": "1.74130"
      }
    ]
  }
}
